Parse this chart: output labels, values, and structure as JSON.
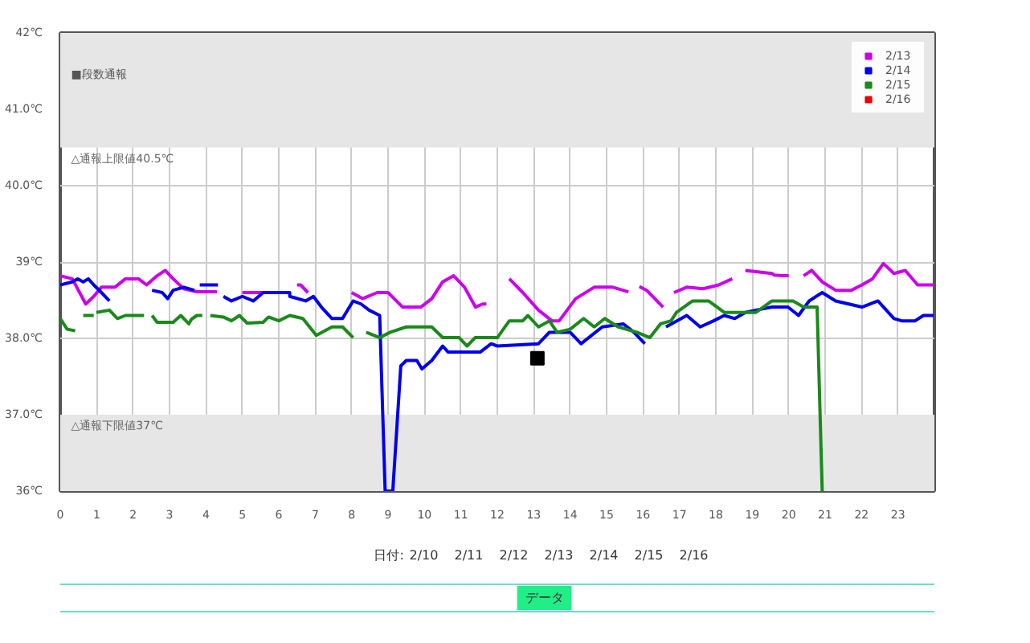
{
  "chart_data": {
    "type": "line",
    "xlim": [
      0,
      24
    ],
    "xticks": [
      0,
      1,
      2,
      3,
      4,
      5,
      6,
      7,
      8,
      9,
      10,
      11,
      12,
      13,
      14,
      15,
      16,
      17,
      18,
      19,
      20,
      21,
      22,
      23
    ],
    "ylim": [
      36,
      42
    ],
    "yticks": [
      {
        "value": 36,
        "label": "36℃"
      },
      {
        "value": 37,
        "label": "37.0℃"
      },
      {
        "value": 38,
        "label": "38.0℃"
      },
      {
        "value": 39,
        "label": "39℃"
      },
      {
        "value": 40,
        "label": "40.0℃"
      },
      {
        "value": 41,
        "label": "41.0℃"
      },
      {
        "value": 42,
        "label": "42℃"
      }
    ],
    "grid": true,
    "legend": "top right",
    "line_style": "solid",
    "marker": "none",
    "series": [
      {
        "name": "2/13",
        "color": "#cc00ee",
        "x": [
          0,
          0.33,
          0.7,
          0.92,
          1.13,
          1.5,
          1.79,
          2.15,
          2.37,
          2.66,
          2.88,
          3.1,
          3.39,
          3.75,
          4.3,
          4.5,
          5.0,
          6.3,
          6.4,
          6.5,
          6.6,
          6.8,
          7.0,
          7.1,
          8.0,
          8.3,
          8.7,
          9.0,
          9.4,
          9.9,
          10.2,
          10.5,
          10.8,
          11.1,
          11.4,
          11.5,
          11.6,
          11.7,
          11.8,
          12.33,
          12.7,
          13.13,
          13.5,
          13.7,
          14.15,
          14.66,
          15.17,
          15.6,
          15.7,
          15.9,
          16.1,
          16.55,
          16.6,
          16.85,
          17.2,
          17.65,
          18.08,
          18.45,
          18.6,
          18.81,
          19.54,
          19.6,
          19.83,
          20.0,
          20.2,
          20.41,
          20.63,
          20.92,
          21.29,
          21.72,
          22.01,
          22.3,
          22.6,
          22.89,
          23.2,
          23.54,
          23.98
        ],
        "values": [
          38.82,
          38.78,
          38.45,
          38.55,
          38.67,
          38.67,
          38.78,
          38.78,
          38.7,
          38.82,
          38.89,
          38.78,
          38.65,
          38.61,
          38.61,
          null,
          38.6,
          38.6,
          null,
          38.7,
          38.7,
          38.6,
          null,
          null,
          38.6,
          38.52,
          38.6,
          38.6,
          38.41,
          38.41,
          38.52,
          38.74,
          38.82,
          38.67,
          38.41,
          38.43,
          38.45,
          38.45,
          null,
          38.78,
          38.6,
          38.37,
          38.23,
          38.23,
          38.52,
          38.67,
          38.67,
          38.61,
          null,
          38.68,
          38.63,
          38.41,
          null,
          38.6,
          38.67,
          38.65,
          38.7,
          38.78,
          null,
          38.89,
          38.85,
          38.83,
          38.82,
          38.82,
          null,
          38.82,
          38.89,
          38.74,
          38.63,
          38.63,
          38.7,
          38.78,
          38.98,
          38.85,
          38.89,
          38.7,
          38.7
        ]
      },
      {
        "name": "2/14",
        "color": "#0000ee",
        "x": [
          0,
          0.33,
          0.48,
          0.63,
          0.77,
          0.92,
          1.13,
          1.35,
          1.5,
          2.52,
          2.8,
          2.95,
          3.1,
          3.39,
          3.68,
          3.75,
          3.83,
          4.33,
          4.4,
          4.48,
          4.7,
          5.0,
          5.3,
          5.57,
          6.3,
          6.3,
          6.74,
          6.95,
          7.17,
          7.46,
          7.75,
          8.04,
          8.26,
          8.48,
          8.77,
          8.92,
          9.13,
          9.35,
          9.5,
          9.79,
          9.93,
          10.2,
          10.5,
          10.65,
          11.53,
          11.83,
          12.0,
          13.13,
          13.43,
          14.0,
          14.3,
          14.88,
          15.46,
          15.75,
          16.05,
          16.3,
          16.63,
          17.2,
          17.57,
          17.94,
          18.23,
          18.52,
          18.81,
          19.1,
          19.54,
          19.98,
          20.27,
          20.56,
          20.92,
          21.29,
          22.01,
          22.45,
          22.89,
          23.1,
          23.3,
          23.47,
          23.7,
          23.98
        ],
        "values": [
          38.7,
          38.74,
          38.78,
          38.74,
          38.78,
          38.7,
          38.6,
          38.49,
          null,
          38.63,
          38.6,
          38.52,
          38.63,
          38.67,
          38.63,
          null,
          38.7,
          38.7,
          null,
          38.55,
          38.49,
          38.55,
          38.49,
          38.6,
          38.6,
          38.55,
          38.49,
          38.55,
          38.41,
          38.26,
          38.26,
          38.49,
          38.45,
          38.37,
          38.3,
          36,
          36,
          37.64,
          37.71,
          37.71,
          37.6,
          37.71,
          37.9,
          37.82,
          37.82,
          37.93,
          37.9,
          37.93,
          38.08,
          38.08,
          37.93,
          38.15,
          38.19,
          38.08,
          37.93,
          null,
          38.15,
          38.3,
          38.15,
          38.23,
          38.3,
          38.26,
          38.34,
          38.37,
          38.41,
          38.41,
          38.3,
          38.49,
          38.6,
          38.49,
          38.41,
          38.49,
          38.26,
          38.23,
          38.23,
          38.23,
          38.3,
          38.3
        ]
      },
      {
        "name": "2/15",
        "color": "#1a8a1a",
        "x": [
          0,
          0.19,
          0.41,
          0.5,
          0.63,
          0.92,
          0.95,
          0.99,
          1.35,
          1.57,
          1.79,
          2.3,
          2.4,
          2.52,
          2.66,
          3.1,
          3.31,
          3.53,
          3.6,
          3.75,
          3.9,
          4.0,
          4.12,
          4.48,
          4.7,
          4.92,
          5.13,
          5.57,
          5.72,
          6.0,
          6.3,
          6.66,
          7.03,
          7.46,
          7.75,
          8.04,
          8.2,
          8.4,
          8.77,
          9.06,
          9.5,
          10.2,
          10.5,
          10.95,
          11.17,
          11.39,
          12.0,
          12.33,
          12.7,
          12.84,
          13.13,
          13.43,
          13.64,
          14.0,
          14.37,
          14.66,
          14.95,
          15.32,
          15.83,
          16.19,
          16.48,
          16.77,
          16.92,
          17.36,
          17.8,
          18.23,
          19.1,
          19.54,
          20.12,
          20.41,
          20.78,
          20.92
        ],
        "values": [
          38.26,
          38.12,
          38.1,
          null,
          38.3,
          38.3,
          null,
          38.34,
          38.37,
          38.26,
          38.3,
          38.3,
          null,
          38.3,
          38.21,
          38.21,
          38.3,
          38.19,
          38.25,
          38.3,
          38.3,
          null,
          38.3,
          38.28,
          38.23,
          38.3,
          38.2,
          38.21,
          38.28,
          38.23,
          38.3,
          38.26,
          38.04,
          38.15,
          38.15,
          38.01,
          null,
          38.08,
          38.01,
          38.08,
          38.15,
          38.15,
          38.01,
          38.01,
          37.9,
          38.01,
          38.01,
          38.23,
          38.23,
          38.3,
          38.15,
          38.23,
          38.08,
          38.12,
          38.26,
          38.15,
          38.26,
          38.15,
          38.08,
          38.01,
          38.19,
          38.23,
          38.34,
          38.49,
          38.49,
          38.34,
          38.34,
          38.49,
          38.49,
          38.41,
          38.41,
          36
        ]
      },
      {
        "name": "2/16",
        "color": "#ee0000"
      },
      {
        "type": "scatter",
        "color": "#000000",
        "marker": "square",
        "x": [
          13.1
        ],
        "values": [
          37.74
        ]
      }
    ],
    "bands": [
      {
        "axis": "y",
        "from": 40.5,
        "to": 42,
        "label": "△通報上限値40.5℃",
        "color": "#e6e6e6"
      },
      {
        "axis": "y",
        "from": 36,
        "to": 37,
        "label": "△通報下限値37℃",
        "color": "#e6e6e6"
      }
    ],
    "annotations": [
      "■段数通報",
      "日付:",
      "2/10",
      "2/11",
      "2/12",
      "2/13",
      "2/14",
      "2/15",
      "2/16",
      "データ"
    ]
  }
}
